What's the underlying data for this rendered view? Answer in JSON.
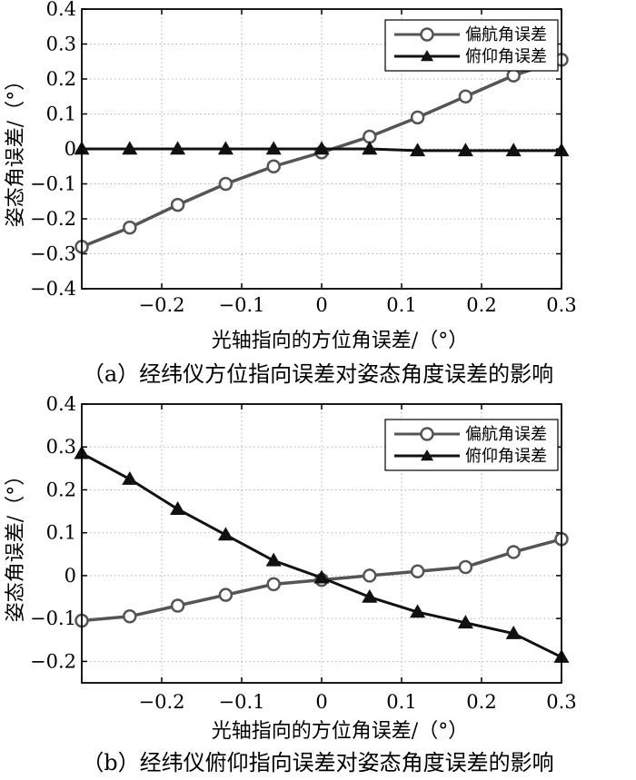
{
  "chart_data": [
    {
      "type": "line",
      "caption": "（a）经纬仪方位指向误差对姿态角度误差的影响",
      "xlabel": "光轴指向的方位角误差/（°）",
      "ylabel": "姿态角误差/（°）",
      "xlim": [
        -0.3,
        0.3
      ],
      "ylim": [
        -0.4,
        0.4
      ],
      "x_ticks": [
        -0.2,
        -0.1,
        0,
        0.1,
        0.2,
        0.3
      ],
      "x_tick_labels": [
        "−0.2",
        "−0.1",
        "0",
        "0.1",
        "0.2",
        "0.3"
      ],
      "y_ticks": [
        -0.4,
        -0.3,
        -0.2,
        -0.1,
        0,
        0.1,
        0.2,
        0.3,
        0.4
      ],
      "y_tick_labels": [
        "−0.4",
        "−0.3",
        "−0.2",
        "−0.1",
        "0",
        "0.1",
        "0.2",
        "0.3",
        "0.4"
      ],
      "grid": true,
      "legend_position": "top-right",
      "x": [
        -0.3,
        -0.24,
        -0.18,
        -0.12,
        -0.06,
        0,
        0.06,
        0.12,
        0.18,
        0.24,
        0.3
      ],
      "series": [
        {
          "name": "偏航角误差",
          "marker": "circle",
          "color": "#555555",
          "values": [
            -0.28,
            -0.225,
            -0.16,
            -0.1,
            -0.05,
            -0.01,
            0.035,
            0.09,
            0.15,
            0.21,
            0.255
          ]
        },
        {
          "name": "俯仰角误差",
          "marker": "triangle",
          "color": "#111111",
          "values": [
            0,
            0,
            0,
            0,
            0,
            0,
            0,
            -0.005,
            -0.005,
            -0.005,
            -0.005
          ]
        }
      ]
    },
    {
      "type": "line",
      "caption": "（b）经纬仪俯仰指向误差对姿态角度误差的影响",
      "xlabel": "光轴指向的方位角误差/（°）",
      "ylabel": "姿态角误差/（°）",
      "xlim": [
        -0.3,
        0.3
      ],
      "ylim": [
        -0.25,
        0.4
      ],
      "x_ticks": [
        -0.2,
        -0.1,
        0,
        0.1,
        0.2,
        0.3
      ],
      "x_tick_labels": [
        "−0.2",
        "−0.1",
        "0",
        "0.1",
        "0.2",
        "0.3"
      ],
      "y_ticks": [
        -0.2,
        -0.1,
        0,
        0.1,
        0.2,
        0.3,
        0.4
      ],
      "y_tick_labels": [
        "−0.2",
        "−0.1",
        "0",
        "0.1",
        "0.2",
        "0.3",
        "0.4"
      ],
      "grid": true,
      "legend_position": "top-right",
      "x": [
        -0.3,
        -0.24,
        -0.18,
        -0.12,
        -0.06,
        0,
        0.06,
        0.12,
        0.18,
        0.24,
        0.3
      ],
      "series": [
        {
          "name": "偏航角误差",
          "marker": "circle",
          "color": "#555555",
          "values": [
            -0.105,
            -0.095,
            -0.07,
            -0.045,
            -0.02,
            -0.01,
            0.0,
            0.01,
            0.02,
            0.055,
            0.085
          ]
        },
        {
          "name": "俯仰角误差",
          "marker": "triangle",
          "color": "#111111",
          "values": [
            0.285,
            0.225,
            0.155,
            0.095,
            0.035,
            -0.005,
            -0.05,
            -0.085,
            -0.11,
            -0.135,
            -0.19
          ]
        }
      ]
    }
  ]
}
